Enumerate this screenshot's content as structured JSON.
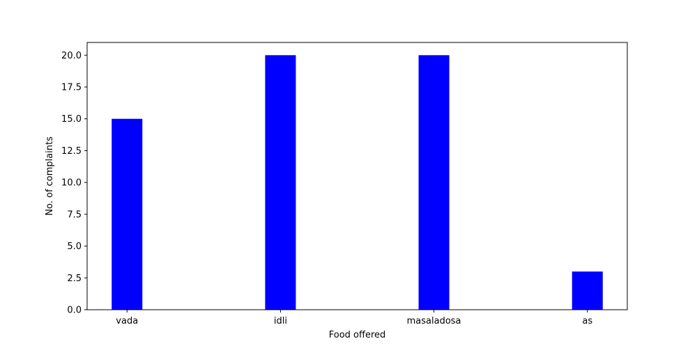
{
  "chart_data": {
    "type": "bar",
    "categories": [
      "vada",
      "idli",
      "masaladosa",
      "as"
    ],
    "values": [
      15,
      20,
      20,
      3
    ],
    "title": "",
    "xlabel": "Food offered",
    "ylabel": "No. of complaints",
    "ylim": [
      0,
      21
    ],
    "yticks": [
      "0.0",
      "2.5",
      "5.0",
      "7.5",
      "10.0",
      "12.5",
      "15.0",
      "17.5",
      "20.0"
    ],
    "bar_color": "#0000ff",
    "grid": false,
    "legend": "none"
  }
}
